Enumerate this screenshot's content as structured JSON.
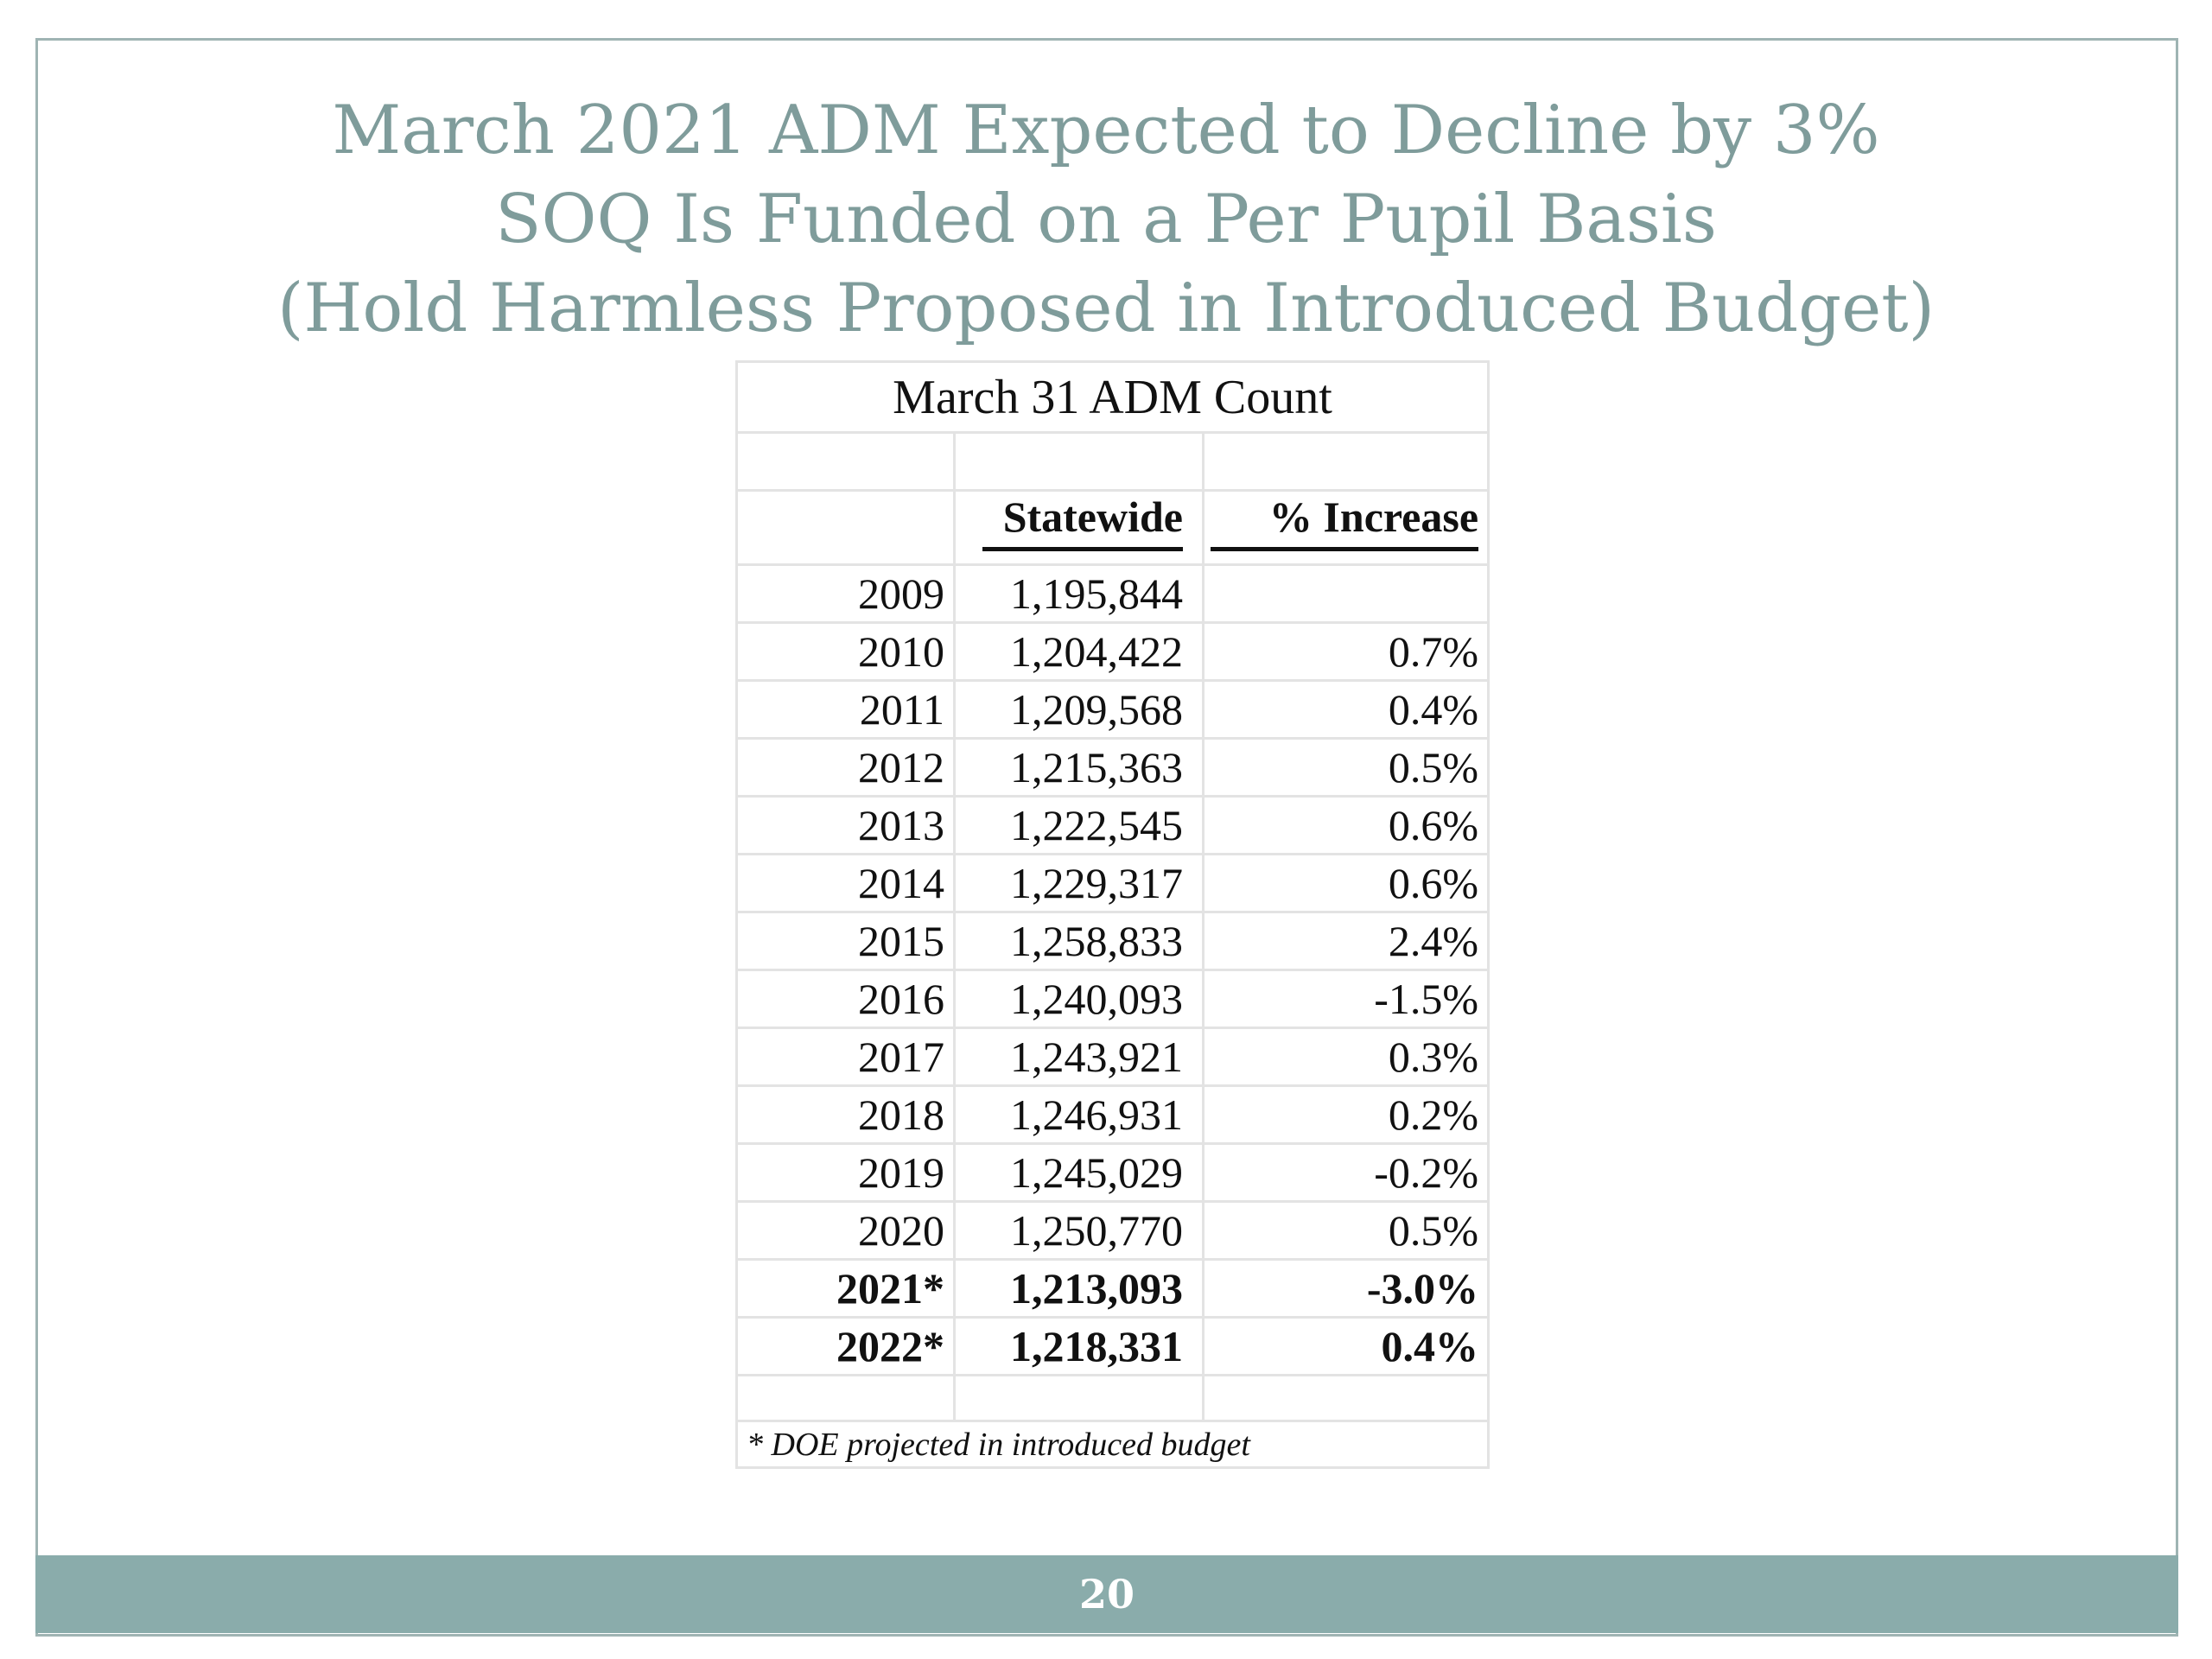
{
  "slide": {
    "title_lines": [
      "March 2021 ADM Expected to Decline by 3%",
      "SOQ Is Funded on a Per Pupil Basis",
      "(Hold Harmless Proposed in Introduced Budget)"
    ],
    "page_number": "20"
  },
  "table": {
    "caption": "March 31 ADM Count",
    "headers": {
      "statewide": "Statewide",
      "pct_increase": "% Increase"
    },
    "rows": [
      {
        "year": "2009",
        "statewide": "1,195,844",
        "pct": ""
      },
      {
        "year": "2010",
        "statewide": "1,204,422",
        "pct": "0.7%"
      },
      {
        "year": "2011",
        "statewide": "1,209,568",
        "pct": "0.4%"
      },
      {
        "year": "2012",
        "statewide": "1,215,363",
        "pct": "0.5%"
      },
      {
        "year": "2013",
        "statewide": "1,222,545",
        "pct": "0.6%"
      },
      {
        "year": "2014",
        "statewide": "1,229,317",
        "pct": "0.6%"
      },
      {
        "year": "2015",
        "statewide": "1,258,833",
        "pct": "2.4%"
      },
      {
        "year": "2016",
        "statewide": "1,240,093",
        "pct": "-1.5%"
      },
      {
        "year": "2017",
        "statewide": "1,243,921",
        "pct": "0.3%"
      },
      {
        "year": "2018",
        "statewide": "1,246,931",
        "pct": "0.2%"
      },
      {
        "year": "2019",
        "statewide": "1,245,029",
        "pct": "-0.2%"
      },
      {
        "year": "2020",
        "statewide": "1,250,770",
        "pct": "0.5%"
      },
      {
        "year": "2021*",
        "statewide": "1,213,093",
        "pct": "-3.0%"
      },
      {
        "year": "2022*",
        "statewide": "1,218,331",
        "pct": "0.4%"
      }
    ],
    "footnote": "* DOE projected in introduced budget"
  },
  "colors": {
    "title": "#7f9c9b",
    "footer_bar": "#8aacab",
    "frame": "#9fb4b3",
    "grid": "#e3e3e3"
  }
}
